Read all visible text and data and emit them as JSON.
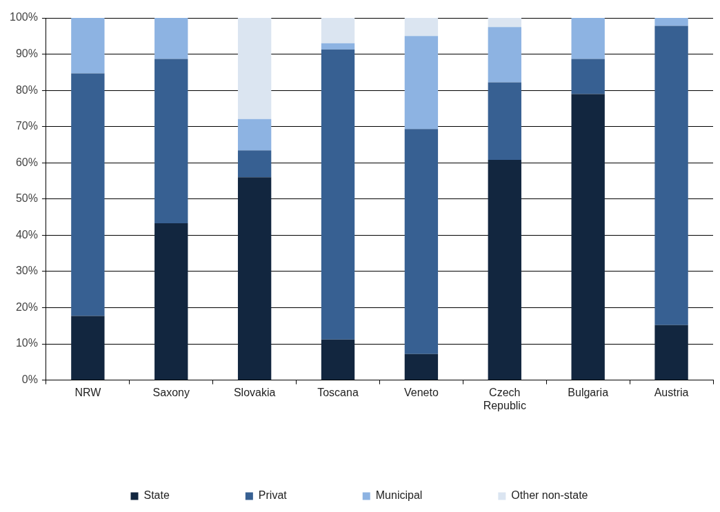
{
  "chart_data": {
    "type": "bar",
    "stacked": true,
    "categories": [
      "NRW",
      "Saxony",
      "Slovakia",
      "Toscana",
      "Veneto",
      "Czech Republic",
      "Bulgaria",
      "Austria"
    ],
    "series": [
      {
        "name": "State",
        "color": "#12263f",
        "values": [
          17.7,
          43.3,
          56,
          11.2,
          7.2,
          60.8,
          79,
          15.2
        ]
      },
      {
        "name": "Privat",
        "color": "#376092",
        "values": [
          67,
          45.4,
          7.4,
          80.1,
          62.1,
          21.4,
          9.7,
          82.6
        ]
      },
      {
        "name": "Municipal",
        "color": "#8db3e2",
        "values": [
          15.3,
          11.3,
          8.7,
          1.7,
          25.7,
          15.3,
          11.3,
          2.2
        ]
      },
      {
        "name": "Other non-state",
        "color": "#dbe5f1",
        "values": [
          0,
          0,
          28,
          7,
          5,
          2.5,
          0,
          0
        ]
      }
    ],
    "ylim": [
      0,
      100
    ],
    "yticks": [
      {
        "value": 0,
        "label": "0%"
      },
      {
        "value": 10,
        "label": "10%"
      },
      {
        "value": 20,
        "label": "20%"
      },
      {
        "value": 30,
        "label": "30%"
      },
      {
        "value": 40,
        "label": "40%"
      },
      {
        "value": 50,
        "label": "50%"
      },
      {
        "value": 60,
        "label": "60%"
      },
      {
        "value": 70,
        "label": "70%"
      },
      {
        "value": 80,
        "label": "80%"
      },
      {
        "value": 90,
        "label": "90%"
      },
      {
        "value": 100,
        "label": "100%"
      }
    ],
    "grid": "y",
    "legend": "bottom"
  }
}
